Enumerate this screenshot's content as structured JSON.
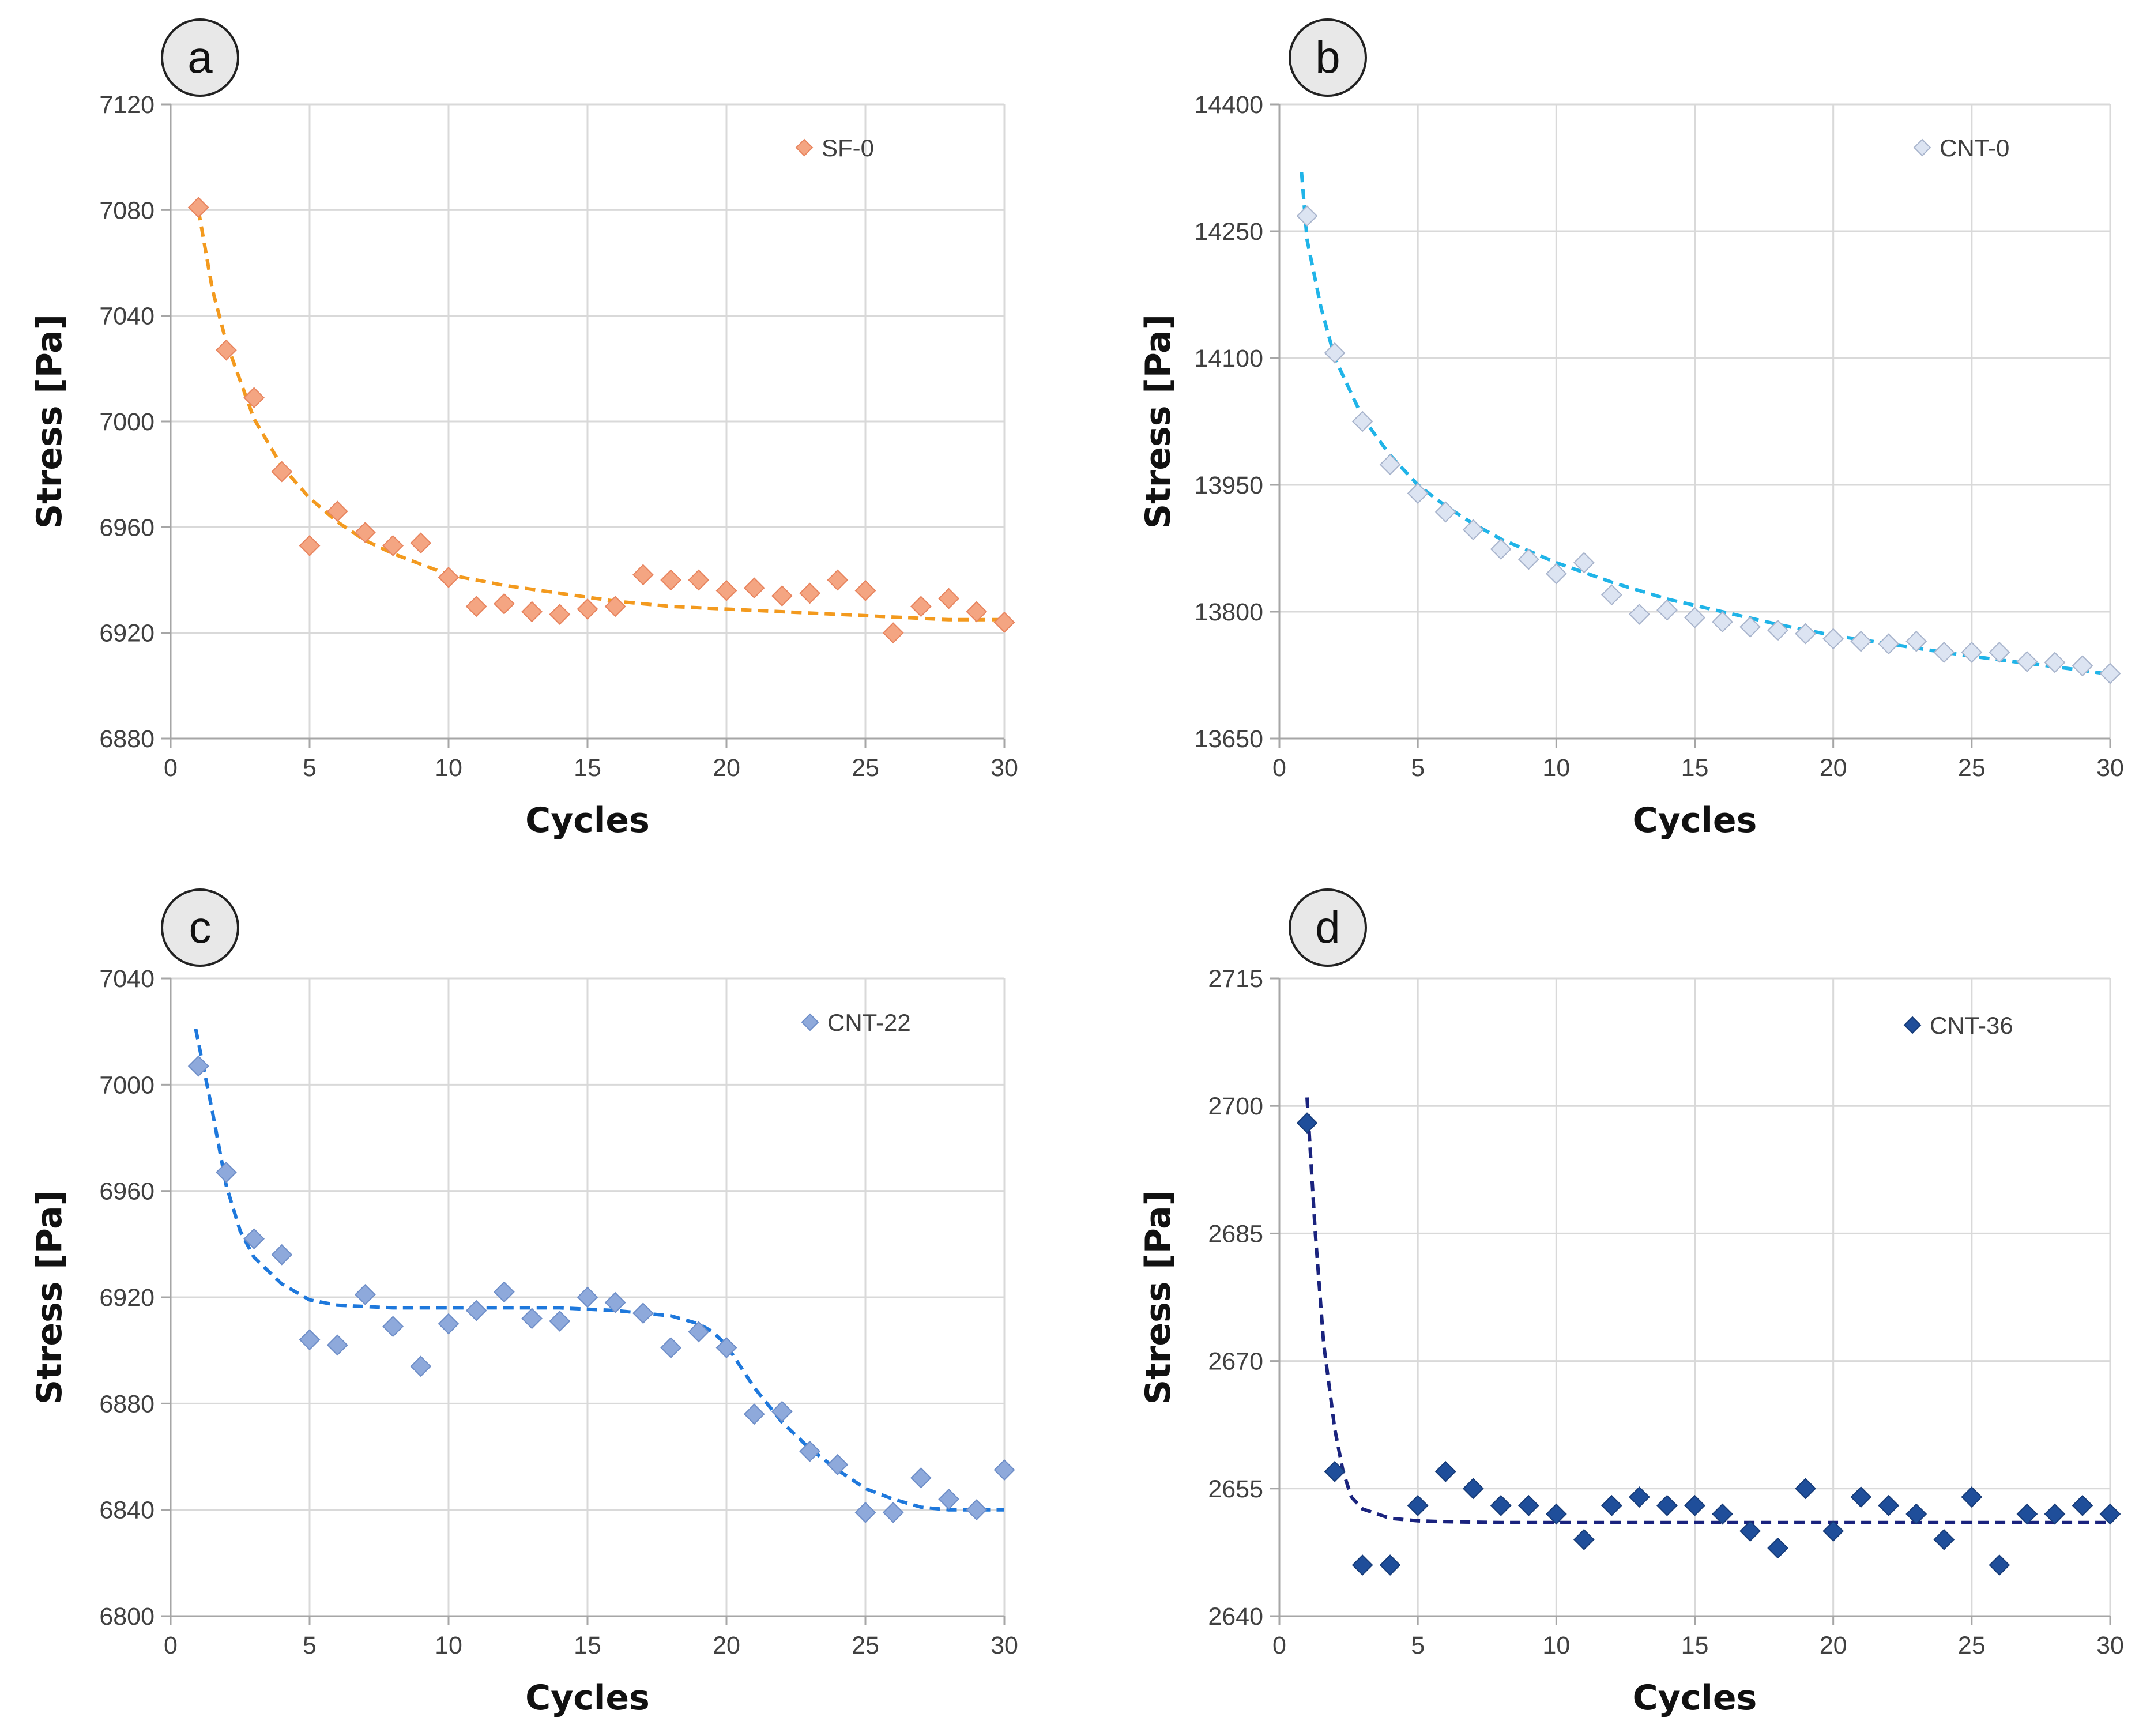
{
  "figure": {
    "panels": [
      {
        "id": "a",
        "label": "a"
      },
      {
        "id": "b",
        "label": "b"
      },
      {
        "id": "c",
        "label": "c"
      },
      {
        "id": "d",
        "label": "d"
      }
    ]
  },
  "chart_data": [
    {
      "panel": "a",
      "type": "scatter",
      "xlabel": "Cycles",
      "ylabel": "Stress [Pa]",
      "xlim": [
        0,
        30
      ],
      "ylim": [
        6880,
        7120
      ],
      "xticks": [
        0,
        5,
        10,
        15,
        20,
        25,
        30
      ],
      "yticks": [
        6880,
        6920,
        6960,
        7000,
        7040,
        7080,
        7120
      ],
      "legend": "top-right",
      "grid": true,
      "series": [
        {
          "name": "SF-0",
          "color": "#F4A582",
          "edge": "#E8845E",
          "trend_color": "#F39A1E",
          "x": [
            1,
            2,
            3,
            4,
            5,
            6,
            7,
            8,
            9,
            10,
            11,
            12,
            13,
            14,
            15,
            16,
            17,
            18,
            19,
            20,
            21,
            22,
            23,
            24,
            25,
            26,
            27,
            28,
            29,
            30
          ],
          "values": [
            7081,
            7027,
            7009,
            6981,
            6953,
            6966,
            6958,
            6953,
            6954,
            6941,
            6930,
            6931,
            6928,
            6927,
            6929,
            6930,
            6942,
            6940,
            6940,
            6936,
            6937,
            6934,
            6935,
            6940,
            6936,
            6920,
            6930,
            6933,
            6928,
            6924
          ],
          "trend": {
            "x": [
              1,
              1.5,
              2,
              3,
              4,
              5,
              6,
              7,
              8,
              9,
              10,
              12,
              14,
              16,
              18,
              20,
              22,
              24,
              26,
              28,
              30
            ],
            "values": [
              7080,
              7050,
              7030,
              7001,
              6983,
              6971,
              6962,
              6955,
              6950,
              6946,
              6942,
              6938,
              6935,
              6932,
              6930,
              6929,
              6928,
              6927,
              6926,
              6925,
              6925
            ]
          }
        }
      ]
    },
    {
      "panel": "b",
      "type": "scatter",
      "xlabel": "Cycles",
      "ylabel": "Stress [Pa]",
      "xlim": [
        0,
        30
      ],
      "ylim": [
        13650,
        14400
      ],
      "xticks": [
        0,
        5,
        10,
        15,
        20,
        25,
        30
      ],
      "yticks": [
        13650,
        13800,
        13950,
        14100,
        14250,
        14400
      ],
      "legend": "top-right",
      "grid": true,
      "series": [
        {
          "name": "CNT-0",
          "color": "#DCE4F2",
          "edge": "#A8B4CC",
          "trend_color": "#20B4E8",
          "x": [
            1,
            2,
            3,
            4,
            5,
            6,
            7,
            8,
            9,
            10,
            11,
            12,
            13,
            14,
            15,
            16,
            17,
            18,
            19,
            20,
            21,
            22,
            23,
            24,
            25,
            26,
            27,
            28,
            29,
            30
          ],
          "values": [
            14268,
            14106,
            14025,
            13974,
            13940,
            13918,
            13897,
            13874,
            13862,
            13845,
            13858,
            13820,
            13797,
            13802,
            13793,
            13788,
            13782,
            13778,
            13774,
            13768,
            13765,
            13762,
            13765,
            13752,
            13752,
            13752,
            13741,
            13740,
            13736,
            13727
          ],
          "trend": {
            "x": [
              0.8,
              1,
              1.5,
              2,
              3,
              4,
              5,
              6,
              7,
              8,
              10,
              12,
              14,
              16,
              18,
              20,
              22,
              24,
              26,
              28,
              30
            ],
            "values": [
              14320,
              14240,
              14160,
              14100,
              14030,
              13985,
              13950,
              13925,
              13904,
              13886,
              13858,
              13835,
              13815,
              13800,
              13785,
              13772,
              13762,
              13752,
              13743,
              13735,
              13726
            ]
          }
        }
      ]
    },
    {
      "panel": "c",
      "type": "scatter",
      "xlabel": "Cycles",
      "ylabel": "Stress [Pa]",
      "xlim": [
        0,
        30
      ],
      "ylim": [
        6800,
        7040
      ],
      "xticks": [
        0,
        5,
        10,
        15,
        20,
        25,
        30
      ],
      "yticks": [
        6800,
        6840,
        6880,
        6920,
        6960,
        7000,
        7040
      ],
      "legend": "top-right",
      "grid": true,
      "series": [
        {
          "name": "CNT-22",
          "color": "#8EA9DB",
          "edge": "#6E8EC8",
          "trend_color": "#1E78DC",
          "x": [
            1,
            2,
            3,
            4,
            5,
            6,
            7,
            8,
            9,
            10,
            11,
            12,
            13,
            14,
            15,
            16,
            17,
            18,
            19,
            20,
            21,
            22,
            23,
            24,
            25,
            26,
            27,
            28,
            29,
            30
          ],
          "values": [
            7007,
            6967,
            6942,
            6936,
            6904,
            6902,
            6921,
            6909,
            6894,
            6910,
            6915,
            6922,
            6912,
            6911,
            6920,
            6918,
            6914,
            6901,
            6907,
            6901,
            6876,
            6877,
            6862,
            6857,
            6839,
            6839,
            6852,
            6844,
            6840,
            6855
          ],
          "trend": {
            "x": [
              0.9,
              1.5,
              2,
              2.5,
              3,
              4,
              5,
              6,
              8,
              10,
              12,
              14,
              16,
              17,
              18,
              19,
              19.5,
              20,
              20.5,
              21,
              22,
              23,
              24,
              25,
              26,
              27,
              28,
              29,
              30
            ],
            "values": [
              7021,
              6990,
              6962,
              6945,
              6935,
              6925,
              6919,
              6917,
              6916,
              6916,
              6916,
              6916,
              6915,
              6914,
              6913,
              6910,
              6907,
              6902,
              6894,
              6886,
              6873,
              6863,
              6855,
              6848,
              6844,
              6841,
              6840,
              6840,
              6840
            ]
          }
        }
      ]
    },
    {
      "panel": "d",
      "type": "scatter",
      "xlabel": "Cycles",
      "ylabel": "Stress [Pa]",
      "xlim": [
        0,
        30
      ],
      "ylim": [
        2640,
        2715
      ],
      "xticks": [
        0,
        5,
        10,
        15,
        20,
        25,
        30
      ],
      "yticks": [
        2640,
        2655,
        2670,
        2685,
        2700,
        2715
      ],
      "legend": "top-right",
      "grid": true,
      "series": [
        {
          "name": "CNT-36",
          "color": "#1F4E9A",
          "edge": "#163B78",
          "trend_color": "#1A237E",
          "x": [
            1,
            2,
            3,
            4,
            5,
            6,
            7,
            8,
            9,
            10,
            11,
            12,
            13,
            14,
            15,
            16,
            17,
            18,
            19,
            20,
            21,
            22,
            23,
            24,
            25,
            26,
            27,
            28,
            29,
            30
          ],
          "values": [
            2698,
            2657,
            2646,
            2646,
            2653,
            2657,
            2655,
            2653,
            2653,
            2652,
            2649,
            2653,
            2654,
            2653,
            2653,
            2652,
            2650,
            2648,
            2655,
            2650,
            2654,
            2653,
            2652,
            2649,
            2654,
            2646,
            2652,
            2652,
            2653,
            2652
          ],
          "trend": {
            "x": [
              1,
              1.3,
              1.6,
              2,
              2.3,
              2.6,
              3,
              4,
              5,
              6,
              8,
              10,
              15,
              20,
              25,
              30
            ],
            "values": [
              2701,
              2685,
              2672,
              2662,
              2657,
              2654,
              2652.6,
              2651.5,
              2651.2,
              2651.1,
              2651,
              2651,
              2651,
              2651,
              2651,
              2651
            ]
          }
        }
      ]
    }
  ]
}
